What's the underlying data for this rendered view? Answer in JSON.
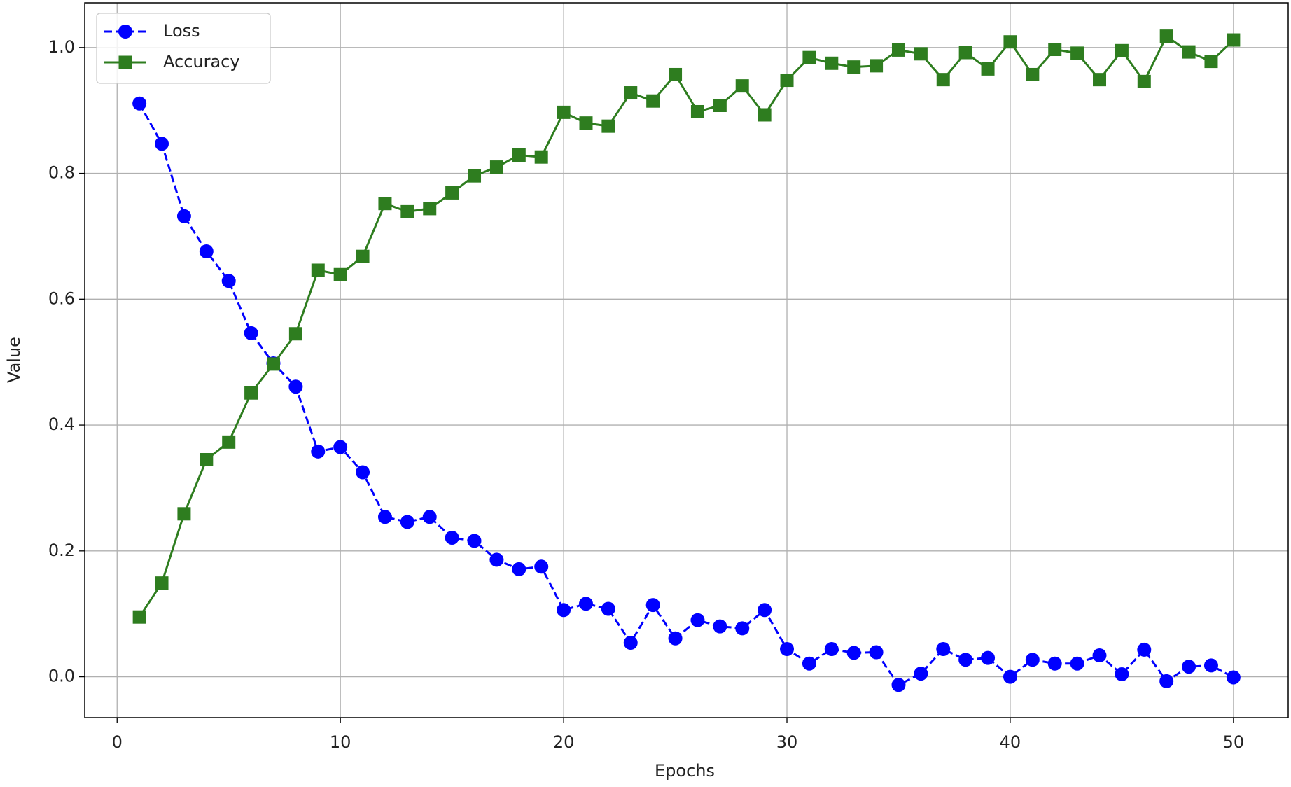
{
  "chart_data": {
    "type": "line",
    "x_label": "Epochs",
    "y_label": "Value",
    "x": [
      1,
      2,
      3,
      4,
      5,
      6,
      7,
      8,
      9,
      10,
      11,
      12,
      13,
      14,
      15,
      16,
      17,
      18,
      19,
      20,
      21,
      22,
      23,
      24,
      25,
      26,
      27,
      28,
      29,
      30,
      31,
      32,
      33,
      34,
      35,
      36,
      37,
      38,
      39,
      40,
      41,
      42,
      43,
      44,
      45,
      46,
      47,
      48,
      49,
      50
    ],
    "series": [
      {
        "name": "Loss",
        "color": "#0000ff",
        "marker": "circle",
        "linestyle": "dashed",
        "values": [
          0.911,
          0.847,
          0.732,
          0.676,
          0.629,
          0.546,
          0.498,
          0.461,
          0.358,
          0.365,
          0.325,
          0.254,
          0.246,
          0.254,
          0.221,
          0.216,
          0.186,
          0.171,
          0.175,
          0.106,
          0.116,
          0.108,
          0.054,
          0.114,
          0.061,
          0.09,
          0.08,
          0.077,
          0.106,
          0.044,
          0.021,
          0.044,
          0.038,
          0.039,
          -0.013,
          0.005,
          0.044,
          0.027,
          0.03,
          0.0,
          0.027,
          0.021,
          0.021,
          0.034,
          0.004,
          0.043,
          -0.007,
          0.016,
          0.018,
          -0.001
        ]
      },
      {
        "name": "Accuracy",
        "color": "#2e7d1f",
        "marker": "square",
        "linestyle": "solid",
        "values": [
          0.095,
          0.149,
          0.259,
          0.345,
          0.373,
          0.451,
          0.497,
          0.545,
          0.646,
          0.639,
          0.668,
          0.752,
          0.739,
          0.744,
          0.769,
          0.796,
          0.81,
          0.829,
          0.826,
          0.897,
          0.88,
          0.875,
          0.928,
          0.915,
          0.957,
          0.898,
          0.908,
          0.939,
          0.893,
          0.948,
          0.984,
          0.975,
          0.969,
          0.971,
          0.996,
          0.99,
          0.949,
          0.992,
          0.966,
          1.009,
          0.957,
          0.997,
          0.991,
          0.949,
          0.995,
          0.946,
          1.018,
          0.993,
          0.978,
          1.012
        ]
      }
    ],
    "xlim": [
      -1.45,
      52.45
    ],
    "ylim": [
      -0.065,
      1.071
    ],
    "xticks": [
      0,
      10,
      20,
      30,
      40,
      50
    ],
    "yticks": [
      {
        "value": 0,
        "label": "0.0"
      },
      0.2,
      0.4,
      0.6,
      0.8,
      {
        "value": 1,
        "label": "1.0"
      }
    ],
    "grid": true,
    "legend": "upper left"
  }
}
